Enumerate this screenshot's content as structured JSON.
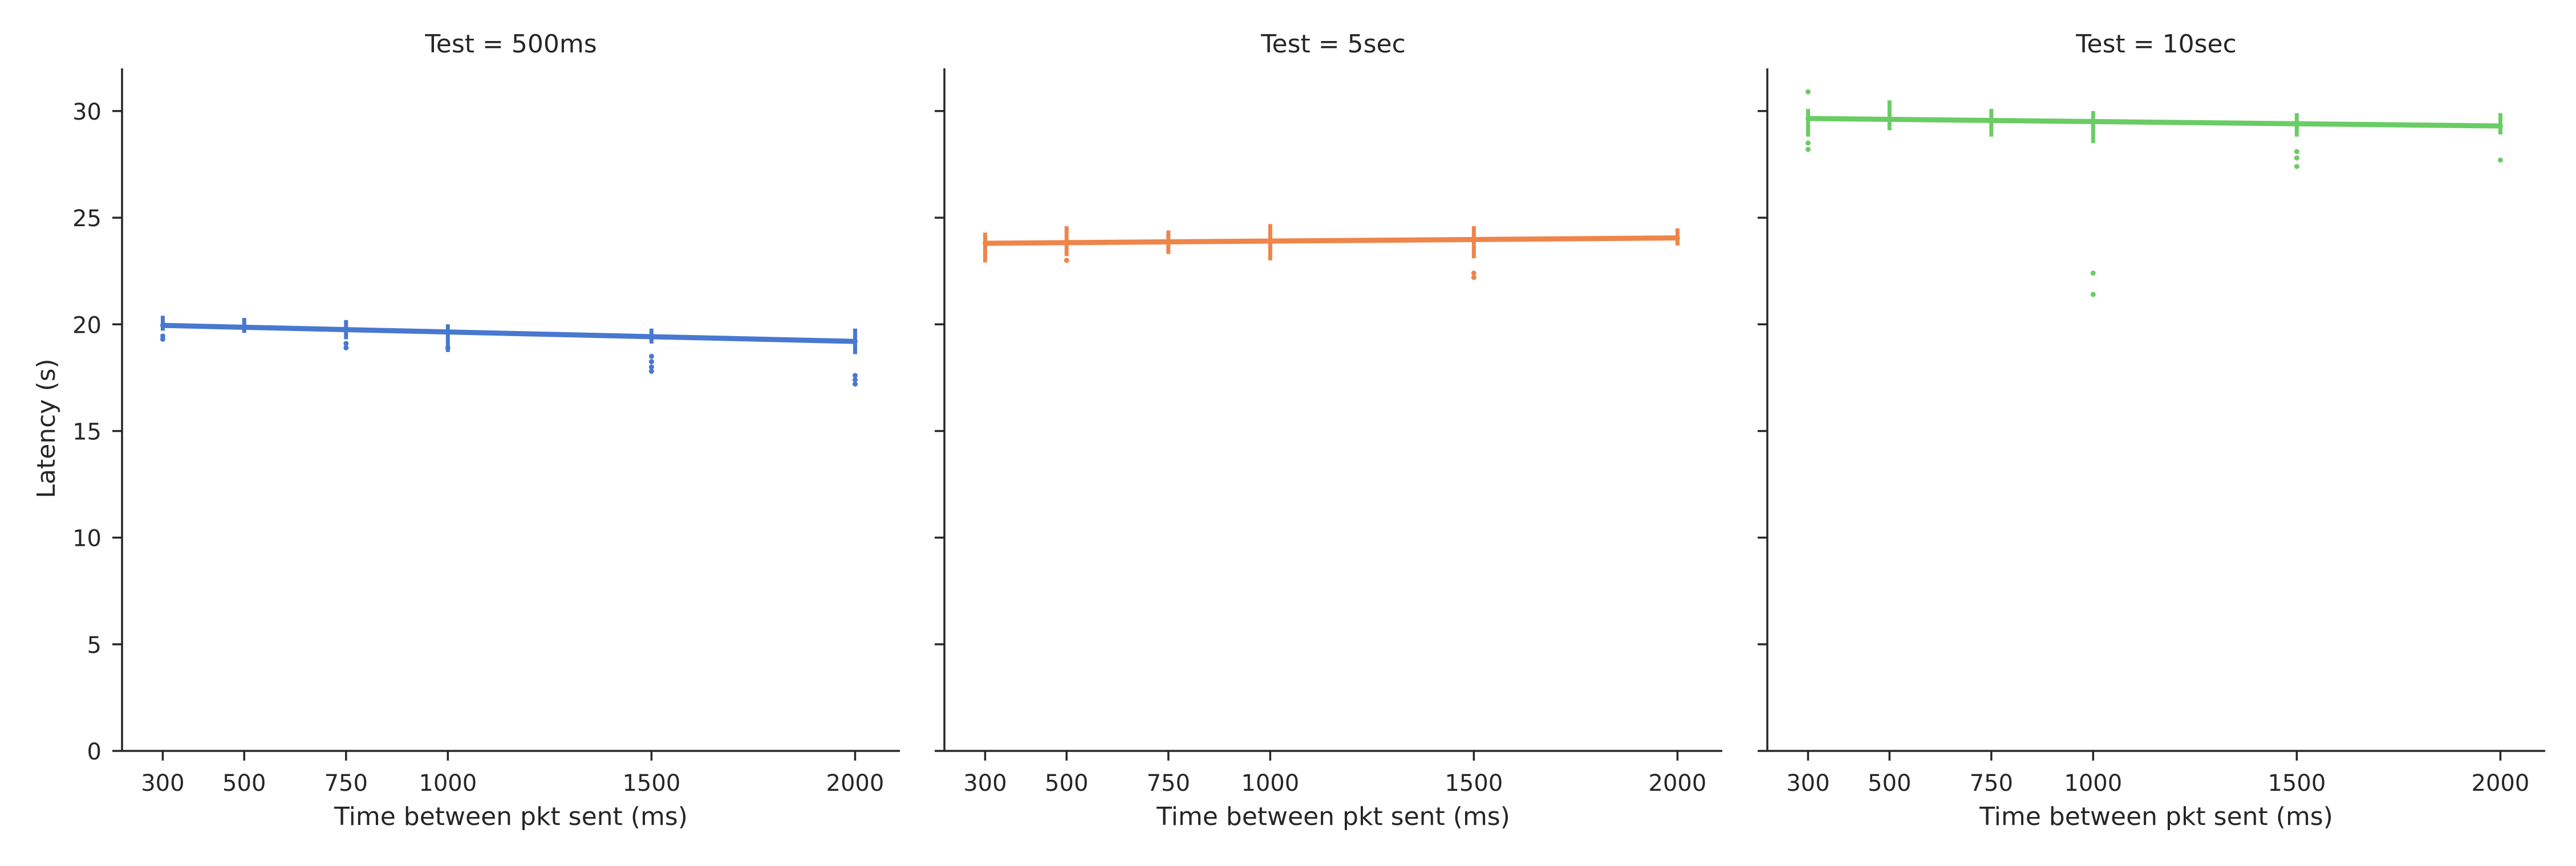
{
  "figure": {
    "ylabel": "Latency (s)"
  },
  "chart_data": [
    {
      "type": "line",
      "title": "Test = 500ms",
      "xlabel": "Time between pkt sent (ms)",
      "ylabel": "Latency (s)",
      "x_ticks": [
        300,
        500,
        750,
        1000,
        1500,
        2000
      ],
      "y_ticks": [
        0,
        5,
        10,
        15,
        20,
        25,
        30
      ],
      "xlim": [
        200,
        2110
      ],
      "ylim": [
        0,
        32
      ],
      "grid": false,
      "color": "#4878d0",
      "line": {
        "x": [
          300,
          2000
        ],
        "y": [
          19.95,
          19.2
        ]
      },
      "ci_bars": [
        {
          "x": 300,
          "low": 19.7,
          "high": 20.4
        },
        {
          "x": 500,
          "low": 19.6,
          "high": 20.3
        },
        {
          "x": 750,
          "low": 19.3,
          "high": 20.2
        },
        {
          "x": 1000,
          "low": 18.7,
          "high": 20.0
        },
        {
          "x": 1500,
          "low": 19.1,
          "high": 19.8
        },
        {
          "x": 2000,
          "low": 18.6,
          "high": 19.8
        }
      ],
      "points": [
        {
          "x": 300,
          "y": 19.45
        },
        {
          "x": 300,
          "y": 19.3
        },
        {
          "x": 750,
          "y": 19.1
        },
        {
          "x": 750,
          "y": 18.9
        },
        {
          "x": 1000,
          "y": 18.9
        },
        {
          "x": 1500,
          "y": 18.5
        },
        {
          "x": 1500,
          "y": 18.25
        },
        {
          "x": 1500,
          "y": 18.0
        },
        {
          "x": 1500,
          "y": 17.8
        },
        {
          "x": 2000,
          "y": 17.6
        },
        {
          "x": 2000,
          "y": 17.4
        },
        {
          "x": 2000,
          "y": 17.2
        }
      ]
    },
    {
      "type": "line",
      "title": "Test = 5sec",
      "xlabel": "Time between pkt sent (ms)",
      "x_ticks": [
        300,
        500,
        750,
        1000,
        1500,
        2000
      ],
      "y_ticks": [
        0,
        5,
        10,
        15,
        20,
        25,
        30
      ],
      "xlim": [
        200,
        2110
      ],
      "ylim": [
        0,
        32
      ],
      "grid": false,
      "color": "#ee854a",
      "line": {
        "x": [
          300,
          2000
        ],
        "y": [
          23.8,
          24.05
        ]
      },
      "ci_bars": [
        {
          "x": 300,
          "low": 22.9,
          "high": 24.3
        },
        {
          "x": 500,
          "low": 23.2,
          "high": 24.6
        },
        {
          "x": 750,
          "low": 23.3,
          "high": 24.4
        },
        {
          "x": 1000,
          "low": 23.0,
          "high": 24.7
        },
        {
          "x": 1500,
          "low": 23.1,
          "high": 24.6
        },
        {
          "x": 2000,
          "low": 23.7,
          "high": 24.5
        }
      ],
      "points": [
        {
          "x": 500,
          "y": 23.0
        },
        {
          "x": 1500,
          "y": 22.4
        },
        {
          "x": 1500,
          "y": 22.2
        }
      ]
    },
    {
      "type": "line",
      "title": "Test = 10sec",
      "xlabel": "Time between pkt sent (ms)",
      "x_ticks": [
        300,
        500,
        750,
        1000,
        1500,
        2000
      ],
      "y_ticks": [
        0,
        5,
        10,
        15,
        20,
        25,
        30
      ],
      "xlim": [
        200,
        2110
      ],
      "ylim": [
        0,
        32
      ],
      "grid": false,
      "color": "#6acc64",
      "line": {
        "x": [
          300,
          2000
        ],
        "y": [
          29.65,
          29.3
        ]
      },
      "ci_bars": [
        {
          "x": 300,
          "low": 28.8,
          "high": 30.1
        },
        {
          "x": 500,
          "low": 29.1,
          "high": 30.5
        },
        {
          "x": 750,
          "low": 28.8,
          "high": 30.1
        },
        {
          "x": 1000,
          "low": 28.5,
          "high": 30.0
        },
        {
          "x": 1500,
          "low": 28.8,
          "high": 29.9
        },
        {
          "x": 2000,
          "low": 28.9,
          "high": 29.9
        }
      ],
      "points": [
        {
          "x": 300,
          "y": 30.9
        },
        {
          "x": 300,
          "y": 28.5
        },
        {
          "x": 300,
          "y": 28.2
        },
        {
          "x": 1000,
          "y": 22.4
        },
        {
          "x": 1000,
          "y": 21.4
        },
        {
          "x": 1500,
          "y": 28.1
        },
        {
          "x": 1500,
          "y": 27.8
        },
        {
          "x": 1500,
          "y": 27.4
        },
        {
          "x": 2000,
          "y": 27.7
        }
      ]
    }
  ]
}
